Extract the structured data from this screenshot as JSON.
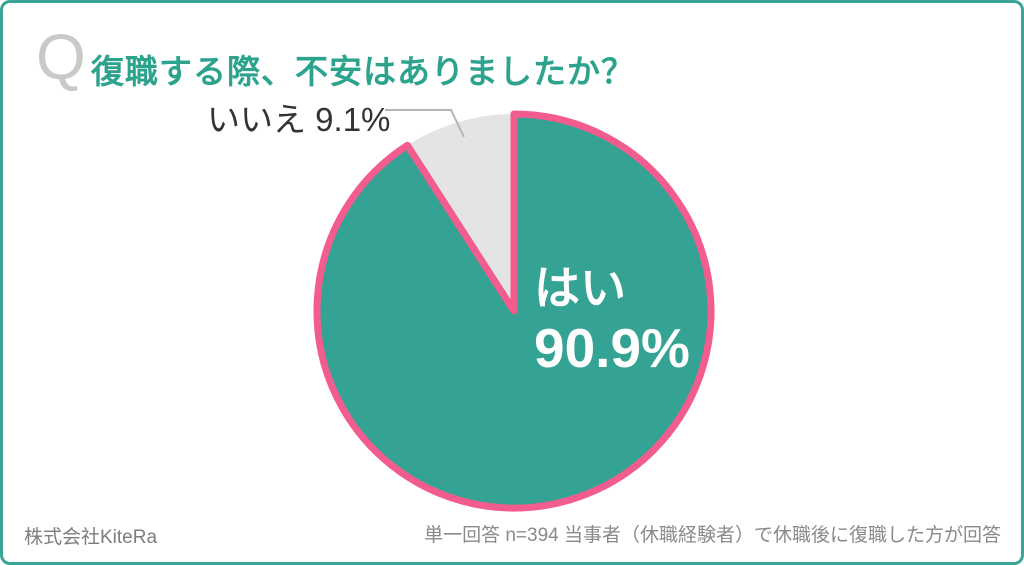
{
  "frame": {
    "border_color": "#3aa596",
    "background_color": "#ffffff"
  },
  "header": {
    "q_mark": "Q",
    "q_mark_color": "#c9c9c9",
    "title": "復職する際、不安はありましたか？",
    "title_color": "#2da38d"
  },
  "chart_data": {
    "type": "pie",
    "title": "復職する際、不安はありましたか？",
    "start_angle_deg": 0,
    "direction": "clockwise",
    "legend_position": "none",
    "slices": [
      {
        "label": "はい",
        "value": 90.9,
        "display": "90.9%",
        "color": "#35a394",
        "stroke_color": "#f25c8e",
        "label_color": "#ffffff",
        "label_position": "inside"
      },
      {
        "label": "いいえ",
        "value": 9.1,
        "display": "9.1%",
        "color": "#e4e4e4",
        "stroke_color": null,
        "label_color": "#333333",
        "label_position": "callout"
      }
    ],
    "annotations": [
      {
        "text": "いいえ 9.1%",
        "type": "callout-with-leader-line"
      },
      {
        "text": "はい 90.9%",
        "type": "inside-label"
      }
    ]
  },
  "footer": {
    "source": "株式会社KiteRa",
    "note": "単一回答 n=394 当事者（休職経験者）で休職後に復職した方が回答"
  }
}
